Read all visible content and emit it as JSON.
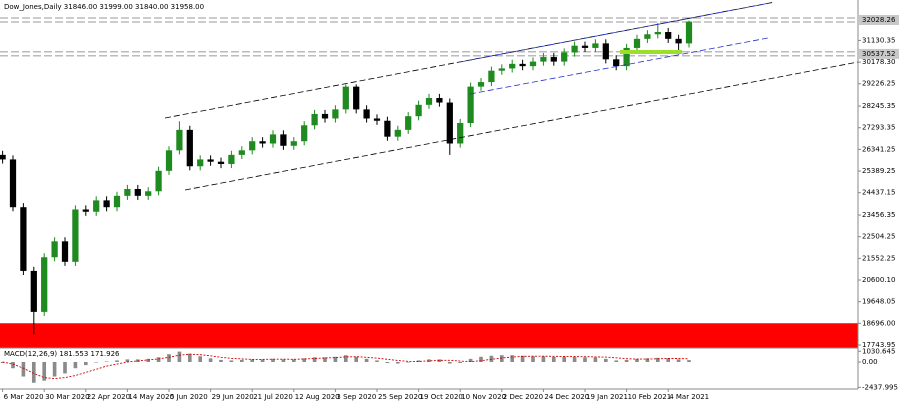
{
  "chart_data": {
    "type": "candlestick",
    "header": "Dow_Jones,Daily  31846.00 31999.00 31840.00 31958.00",
    "x": [
      0,
      4,
      8,
      12,
      16,
      20,
      24,
      28,
      32,
      36,
      40,
      44,
      48,
      52,
      56,
      60,
      64,
      68,
      72,
      76,
      80,
      84,
      88,
      92,
      96,
      100,
      104,
      108,
      112,
      116,
      120,
      124,
      128,
      132,
      136,
      140,
      144,
      148,
      152,
      156,
      160,
      164,
      168,
      172,
      176,
      180,
      184,
      188,
      192,
      196,
      200,
      204,
      208,
      212,
      216,
      220,
      224,
      228,
      232,
      236,
      240,
      244,
      248,
      252,
      256,
      260,
      264
    ],
    "open": [
      26100,
      25900,
      23800,
      21000,
      19200,
      21600,
      22300,
      21400,
      23700,
      23600,
      24100,
      23800,
      24300,
      24600,
      24300,
      24500,
      25400,
      26300,
      27200,
      25600,
      25900,
      25800,
      25700,
      26100,
      26300,
      26700,
      26600,
      27000,
      26500,
      26700,
      27400,
      27900,
      27700,
      28100,
      29100,
      28100,
      27700,
      27600,
      26900,
      27200,
      27800,
      28300,
      28600,
      28400,
      26600,
      27500,
      29100,
      29300,
      29800,
      29900,
      30100,
      30000,
      30200,
      30400,
      30200,
      30600,
      30900,
      30800,
      31000,
      30300,
      30000,
      30800,
      31200,
      31400,
      31500,
      31200,
      31000
    ],
    "high": [
      26280,
      26080,
      23980,
      21180,
      21780,
      22480,
      22480,
      23880,
      23880,
      24280,
      24280,
      24480,
      24780,
      24780,
      24680,
      25580,
      26480,
      27580,
      27380,
      26080,
      26080,
      25980,
      26280,
      26480,
      26880,
      26880,
      27180,
      27180,
      26880,
      27580,
      28080,
      28080,
      28280,
      29200,
      29200,
      28280,
      27880,
      27780,
      27380,
      27980,
      28480,
      28780,
      28780,
      28580,
      27680,
      29280,
      29480,
      29980,
      30080,
      30280,
      30280,
      30380,
      30580,
      30580,
      30780,
      31080,
      31080,
      31180,
      31180,
      30480,
      30980,
      31380,
      31580,
      31900,
      31680,
      31380,
      32000
    ],
    "low": [
      25720,
      23620,
      20820,
      18213,
      19020,
      21420,
      21220,
      21220,
      23420,
      23420,
      23620,
      23620,
      24120,
      24120,
      24120,
      24320,
      25220,
      26120,
      25420,
      25420,
      25620,
      25520,
      25520,
      25920,
      26120,
      26420,
      26420,
      26320,
      26320,
      26520,
      27220,
      27520,
      27520,
      27920,
      27920,
      27520,
      27420,
      26720,
      26720,
      27020,
      27620,
      28120,
      28220,
      26100,
      26420,
      27320,
      28920,
      29120,
      29620,
      29720,
      29820,
      29820,
      30020,
      30020,
      30020,
      30420,
      30620,
      30620,
      30120,
      29820,
      29820,
      30620,
      31020,
      31220,
      31020,
      30550,
      30820
    ],
    "close": [
      25900,
      23800,
      21000,
      19200,
      21600,
      22300,
      21400,
      23700,
      23600,
      24100,
      23800,
      24300,
      24600,
      24300,
      24500,
      25400,
      26300,
      27200,
      25600,
      25900,
      25800,
      25700,
      26100,
      26300,
      26700,
      26600,
      27000,
      26500,
      26700,
      27400,
      27900,
      27700,
      28100,
      29100,
      28100,
      27700,
      27600,
      26900,
      27200,
      27800,
      28300,
      28600,
      28400,
      26600,
      27500,
      29100,
      29300,
      29800,
      29900,
      30100,
      30000,
      30200,
      30400,
      30200,
      30600,
      30900,
      30800,
      31000,
      30300,
      30000,
      30800,
      31200,
      31400,
      31500,
      31200,
      31000,
      31958
    ],
    "up_color": "#1f8a1f",
    "down_color": "#000000",
    "xlim": [
      -1,
      329
    ],
    "ylim": [
      17612,
      32775
    ],
    "yticks": [
      31130.35,
      {
        "value": 30178.3,
        "label": "30178.30"
      },
      29226.25,
      28245.35,
      27293.35,
      26341.25,
      25389.25,
      24437.15,
      23456.35,
      22504.25,
      21552.25,
      {
        "value": 20600.1,
        "label": "20600.10"
      },
      19648.05,
      {
        "value": 18696,
        "label": "18696.00"
      },
      17743.95
    ],
    "levels": [
      32028.26,
      30537.52
    ],
    "zone": [
      17612,
      18700
    ],
    "zone_color": "#ff0000",
    "xticks": [
      {
        "value": 0,
        "label": "6 Mar 2020"
      },
      {
        "value": 16,
        "label": "30 Mar 2020"
      },
      {
        "value": 32,
        "label": "22 Apr 2020"
      },
      {
        "value": 48,
        "label": "14 May 2020"
      },
      {
        "value": 64,
        "label": "5 Jun 2020"
      },
      {
        "value": 80,
        "label": "29 Jun 2020"
      },
      {
        "value": 96,
        "label": "21 Jul 2020"
      },
      {
        "value": 112,
        "label": "12 Aug 2020"
      },
      {
        "value": 128,
        "label": "3 Sep 2020"
      },
      {
        "value": 144,
        "label": "25 Sep 2020"
      },
      {
        "value": 160,
        "label": "19 Oct 2020"
      },
      {
        "value": 176,
        "label": "10 Nov 2020"
      },
      {
        "value": 192,
        "label": "2 Dec 2020"
      },
      {
        "value": 208,
        "label": "24 Dec 2020"
      },
      {
        "value": 224,
        "label": "19 Jan 2021"
      },
      {
        "value": 240,
        "label": "10 Feb 2021"
      },
      {
        "value": 256,
        "label": "4 Mar 2021"
      }
    ],
    "macd": {
      "title": "MACD(12,26,9) 181.553 171.926",
      "hist": [
        -100,
        -600,
        -1400,
        -2000,
        -1800,
        -1400,
        -1100,
        -600,
        -300,
        -50,
        50,
        150,
        250,
        250,
        300,
        450,
        750,
        1000,
        800,
        550,
        350,
        200,
        150,
        200,
        250,
        250,
        300,
        250,
        250,
        350,
        450,
        450,
        500,
        650,
        500,
        300,
        150,
        -100,
        -150,
        -50,
        150,
        250,
        250,
        -150,
        -100,
        300,
        500,
        600,
        650,
        650,
        600,
        550,
        550,
        500,
        500,
        500,
        450,
        450,
        300,
        150,
        200,
        300,
        350,
        400,
        350,
        250,
        180
      ],
      "signal": [
        0,
        -200,
        -600,
        -1100,
        -1500,
        -1600,
        -1500,
        -1300,
        -1000,
        -700,
        -400,
        -200,
        0,
        100,
        200,
        300,
        450,
        650,
        750,
        700,
        600,
        450,
        350,
        300,
        250,
        250,
        270,
        270,
        260,
        290,
        340,
        380,
        420,
        490,
        510,
        450,
        370,
        260,
        140,
        60,
        50,
        100,
        150,
        160,
        90,
        40,
        120,
        260,
        380,
        480,
        540,
        560,
        560,
        550,
        530,
        520,
        510,
        490,
        470,
        400,
        320,
        280,
        290,
        310,
        340,
        340,
        310
      ],
      "hist_color": "#8a8a8a",
      "signal_color": "#d00000",
      "ylim": [
        -2600,
        1250
      ],
      "yticks": [
        1030.645,
        {
          "value": 0,
          "label": "0.00"
        },
        -2437.995
      ]
    }
  }
}
